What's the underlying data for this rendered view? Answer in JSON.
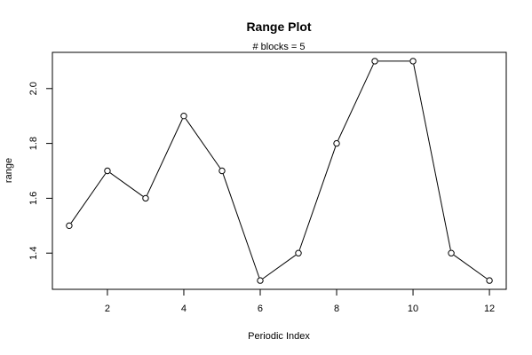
{
  "chart_data": {
    "type": "line",
    "title": "Range Plot",
    "subtitle": "# blocks =  5",
    "xlabel": "Periodic Index",
    "ylabel": "range",
    "x": [
      1,
      2,
      3,
      4,
      5,
      6,
      7,
      8,
      9,
      10,
      11,
      12
    ],
    "y": [
      1.5,
      1.7,
      1.6,
      1.9,
      1.7,
      1.3,
      1.4,
      1.8,
      2.1,
      2.1,
      1.4,
      1.3
    ],
    "xlim": [
      0.56,
      12.44
    ],
    "ylim": [
      1.268,
      2.132
    ],
    "xticks": [
      2,
      4,
      6,
      8,
      10,
      12
    ],
    "yticks": [
      1.4,
      1.6,
      1.8,
      2.0
    ],
    "ytick_labels": [
      "1.4",
      "1.6",
      "1.8",
      "2.0"
    ],
    "grid": false,
    "marker": "open-circle",
    "line_color": "#000000"
  }
}
